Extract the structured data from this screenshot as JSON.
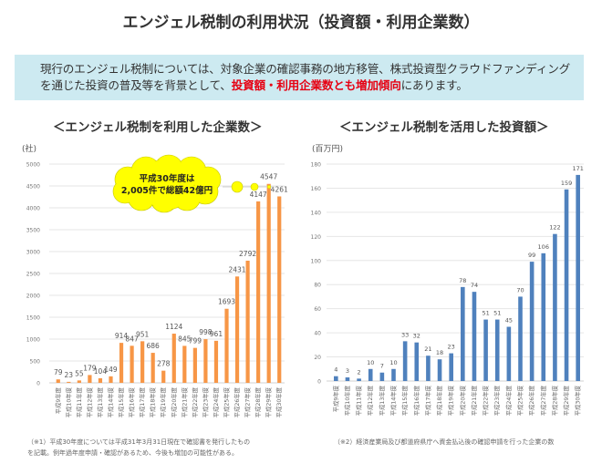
{
  "page": {
    "title": "エンジェル税制の利用状況（投資額・利用企業数）",
    "banner_text_1": "現行のエンジェル税制については、対象企業の確認事務の地方移管、株式投資型クラウドファンディングを通じた投資の普及等を背景として、",
    "banner_highlight": "投資額・利用企業数とも増加傾向",
    "banner_text_2": "にあります。",
    "highlight_color": "#e60012"
  },
  "chart_data": [
    {
      "type": "bar",
      "title": "＜エンジェル税制を利用した企業数＞",
      "ylabel": "(社)",
      "xlabel": "",
      "ylim": [
        0,
        5000
      ],
      "yticks": [
        0,
        500,
        1000,
        1500,
        2000,
        2500,
        3000,
        3500,
        4000,
        4500,
        5000
      ],
      "grid": true,
      "color": "#f79646",
      "categories": [
        "平成9年度",
        "平成10年度",
        "平成11年度",
        "平成12年度",
        "平成13年度",
        "平成14年度",
        "平成15年度",
        "平成16年度",
        "平成17年度",
        "平成18年度",
        "平成19年度",
        "平成20年度",
        "平成21年度",
        "平成22年度",
        "平成23年度",
        "平成24年度",
        "平成25年度",
        "平成26年度",
        "平成27年度",
        "平成28年度",
        "平成29年度",
        "平成30年度"
      ],
      "values": [
        79,
        23,
        55,
        179,
        104,
        149,
        914,
        847,
        951,
        686,
        278,
        1124,
        845,
        799,
        998,
        961,
        1693,
        2431,
        2792,
        4147,
        4547,
        4261
      ],
      "annotation": {
        "line1": "平成30年度は",
        "line2": "2,005件で総額42億円",
        "fill": "#ffff00"
      },
      "footnote_1": "（※1）平成30年度については平成31年3月31日現在で確認書を発行したもの",
      "footnote_2": "を記載。例年過年度申請・確認があるため、今後も増加の可能性がある。"
    },
    {
      "type": "bar",
      "title": "＜エンジェル税制を活用した投資額＞",
      "ylabel": "(百万円)",
      "xlabel": "",
      "ylim": [
        0,
        180
      ],
      "yticks": [
        0,
        20,
        40,
        60,
        80,
        100,
        120,
        140,
        160,
        180
      ],
      "grid": true,
      "color": "#4f81bd",
      "categories": [
        "平成9年度",
        "平成10年度",
        "平成11年度",
        "平成12年度",
        "平成13年度",
        "平成14年度",
        "平成15年度",
        "平成16年度",
        "平成17年度",
        "平成18年度",
        "平成19年度",
        "平成20年度",
        "平成21年度",
        "平成22年度",
        "平成23年度",
        "平成24年度",
        "平成25年度",
        "平成26年度",
        "平成27年度",
        "平成28年度",
        "平成29年度",
        "平成30年度"
      ],
      "values": [
        4,
        3,
        2,
        10,
        7,
        10,
        33,
        32,
        21,
        18,
        23,
        78,
        74,
        51,
        51,
        45,
        70,
        99,
        106,
        122,
        159,
        171
      ],
      "footnote_1": "（※2）経済産業局及び都道府県庁へ資金払込後の確認申請を行った企業の数"
    }
  ]
}
